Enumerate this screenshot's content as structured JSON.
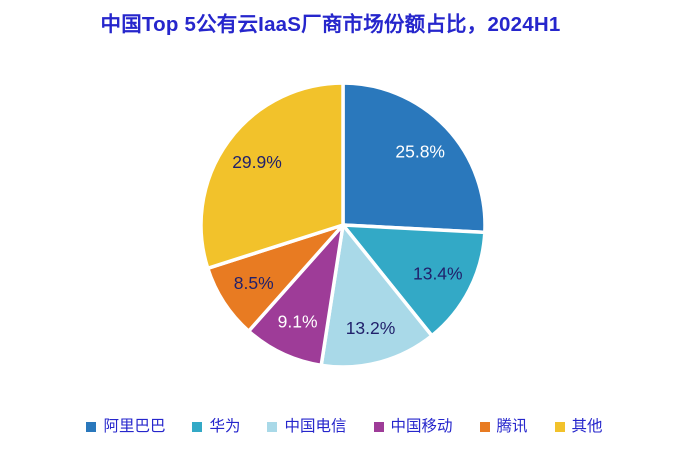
{
  "page": {
    "background_color": "#FFFFFF"
  },
  "chart_data": {
    "type": "pie",
    "title": "中国Top 5公有云IaaS厂商市场份额占比，2024H1",
    "title_color": "#2626CC",
    "legend_position": "bottom",
    "legend_text_color": "#2626CC",
    "direction": "clockwise",
    "start_angle_deg": 0,
    "slice_gap_color": "#FFFFFF",
    "series": [
      {
        "name": "阿里巴巴",
        "value": 25.8,
        "label": "25.8%",
        "color": "#2A78BC",
        "label_color": "#FFFFFF"
      },
      {
        "name": "华为",
        "value": 13.4,
        "label": "13.4%",
        "color": "#33A9C6",
        "label_color": "#21216B"
      },
      {
        "name": "中国电信",
        "value": 13.2,
        "label": "13.2%",
        "color": "#A9D9E8",
        "label_color": "#21216B"
      },
      {
        "name": "中国移动",
        "value": 9.1,
        "label": "9.1%",
        "color": "#9E3C98",
        "label_color": "#FFFFFF"
      },
      {
        "name": "腾讯",
        "value": 8.5,
        "label": "8.5%",
        "color": "#E87B22",
        "label_color": "#21216B"
      },
      {
        "name": "其他",
        "value": 29.9,
        "label": "29.9%",
        "color": "#F2C22B",
        "label_color": "#21216B"
      }
    ]
  }
}
